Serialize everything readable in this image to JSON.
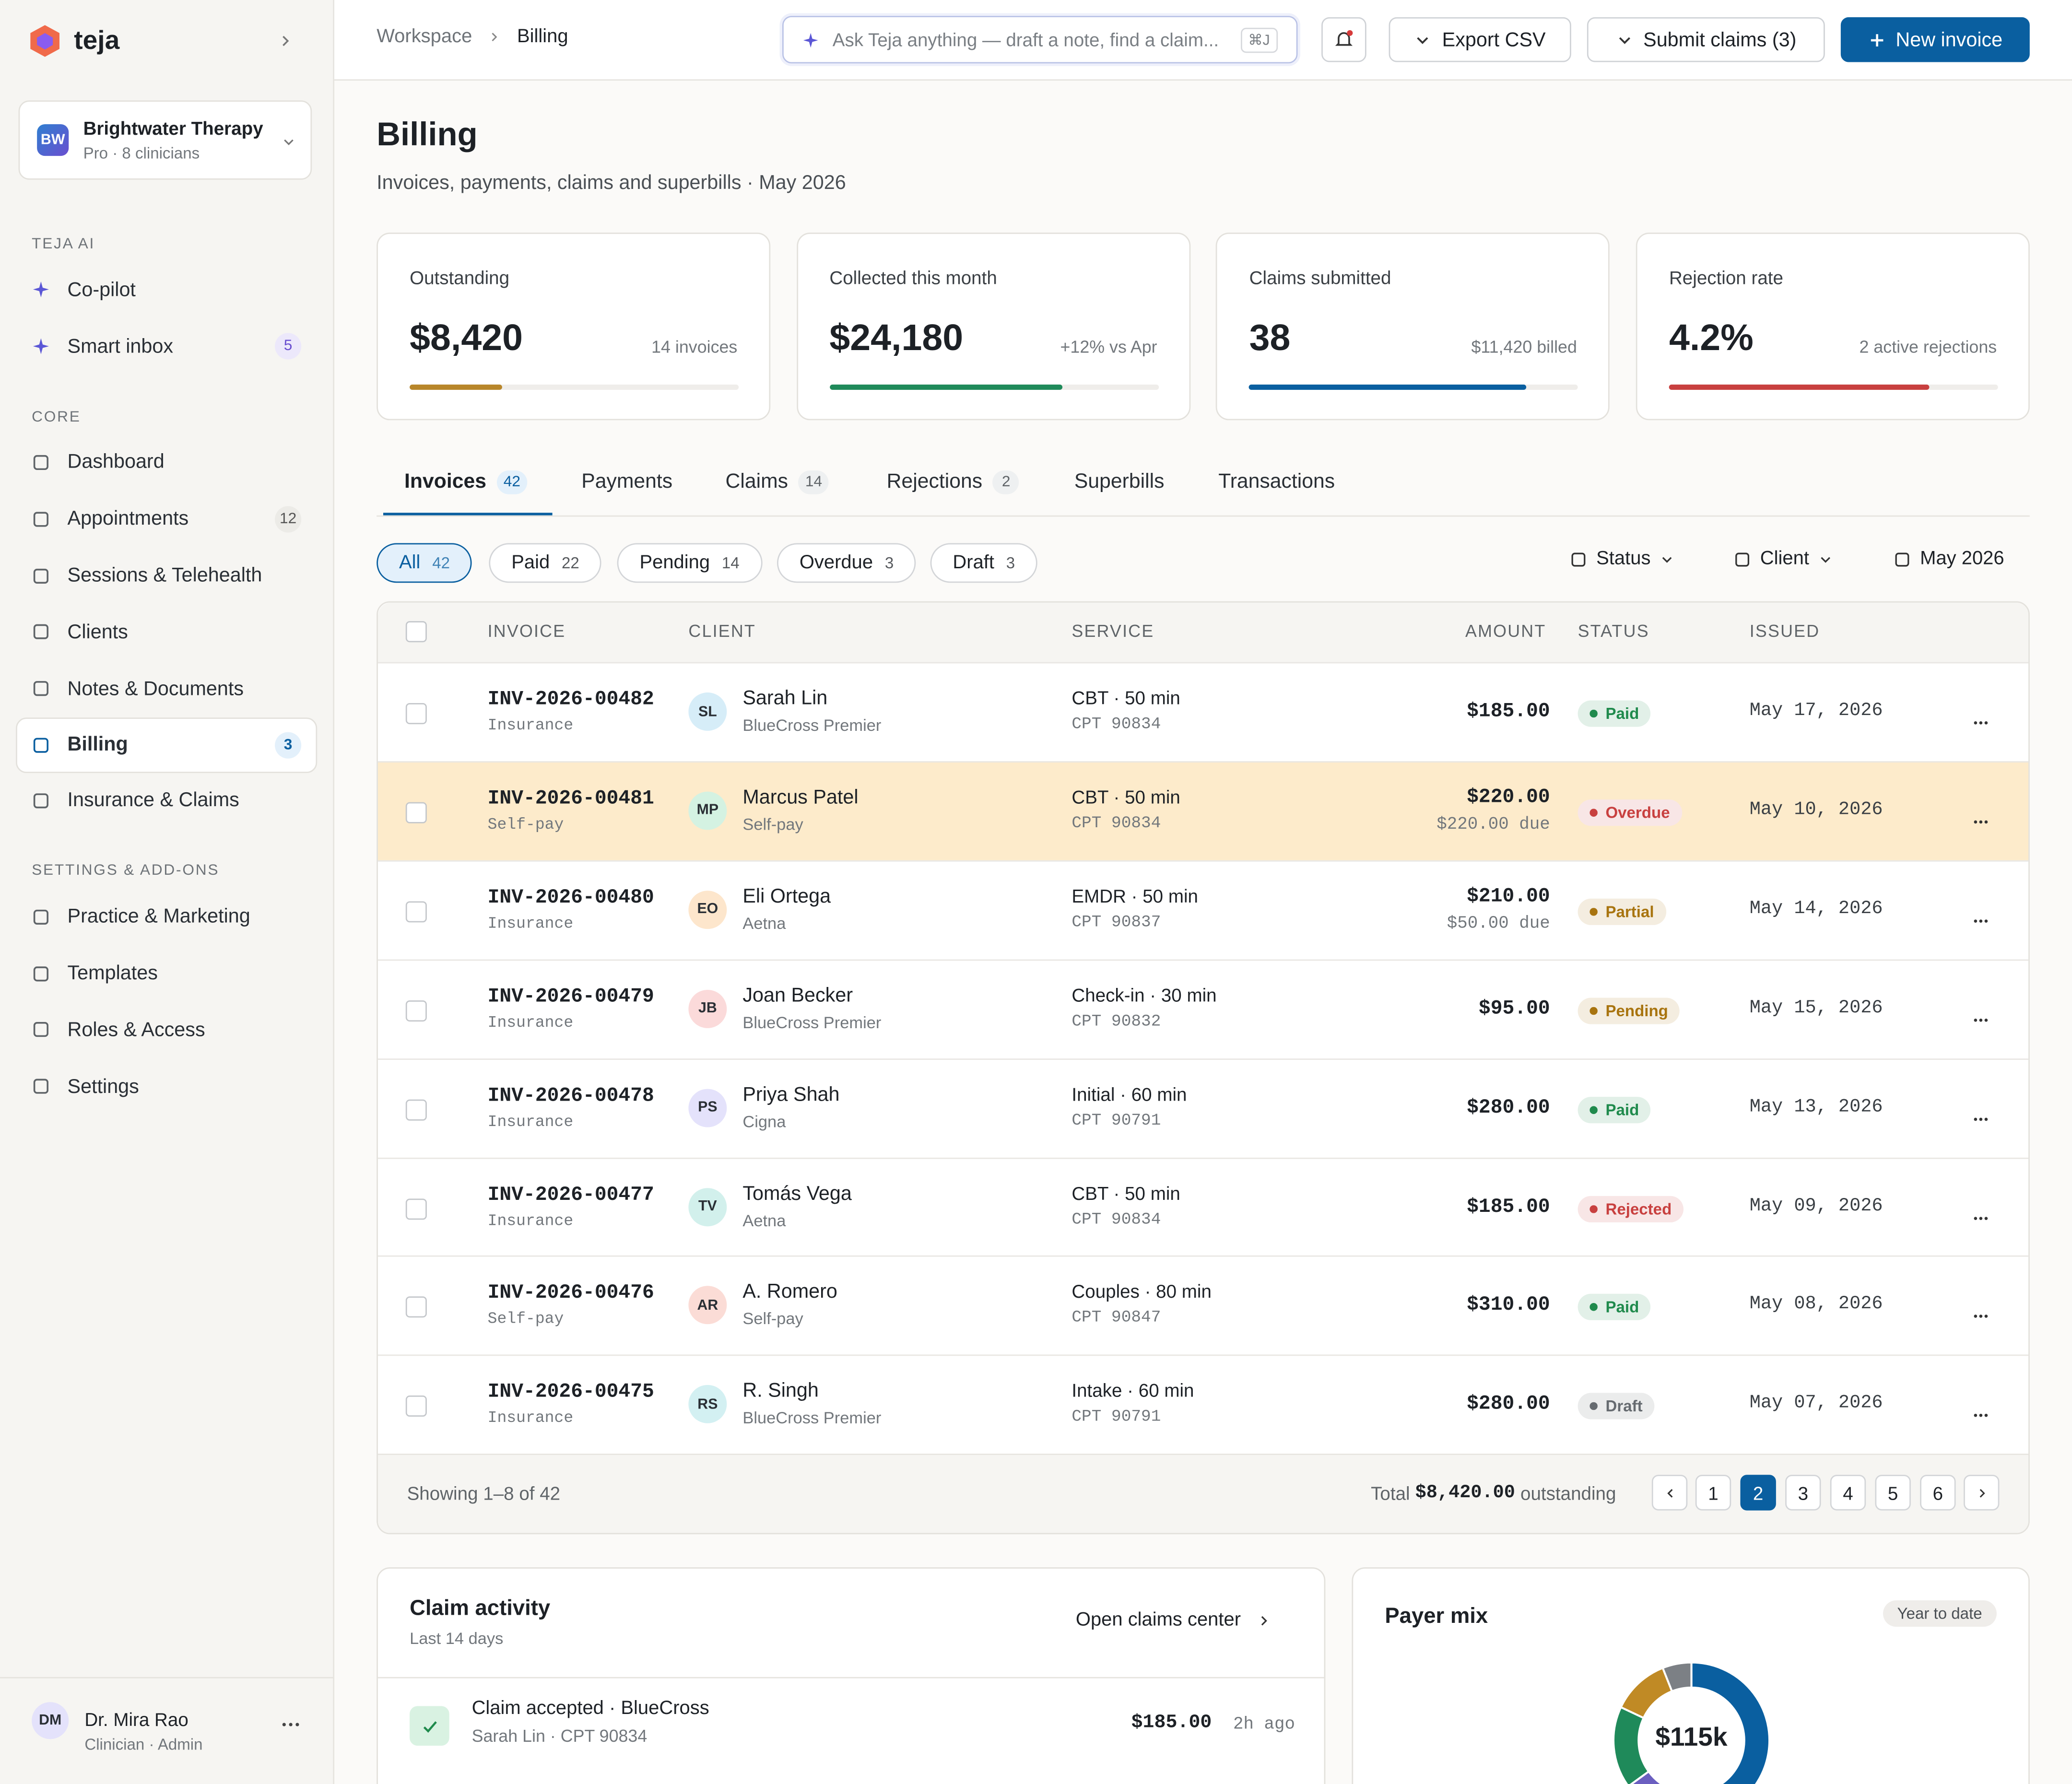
{
  "sidebar": {
    "brand": "teja",
    "org": {
      "initials": "BW",
      "name": "Brightwater Therapy",
      "plan": "Pro · 8 clinicians"
    },
    "sections": [
      {
        "title": "TEJA AI",
        "items": [
          {
            "label": "Co-pilot"
          },
          {
            "label": "Smart inbox",
            "badge": "5"
          }
        ]
      },
      {
        "title": "CORE",
        "items": [
          {
            "label": "Dashboard"
          },
          {
            "label": "Appointments",
            "badge": "12"
          },
          {
            "label": "Sessions & Telehealth"
          },
          {
            "label": "Clients"
          },
          {
            "label": "Notes & Documents"
          },
          {
            "label": "Billing",
            "badge": "3",
            "active": true
          },
          {
            "label": "Insurance & Claims"
          }
        ]
      },
      {
        "title": "SETTINGS & ADD-ONS",
        "items": [
          {
            "label": "Practice & Marketing"
          },
          {
            "label": "Templates"
          },
          {
            "label": "Roles & Access"
          },
          {
            "label": "Settings"
          }
        ]
      }
    ],
    "user": {
      "initials": "DM",
      "name": "Dr. Mira Rao",
      "role": "Clinician · Admin"
    }
  },
  "topbar": {
    "breadcrumb": [
      "Workspace",
      "Billing"
    ],
    "search": "Ask Teja anything — draft a note, find a claim...",
    "shortcut": "⌘J",
    "buttons": [
      "Export CSV",
      "Submit claims (3)",
      "New invoice"
    ]
  },
  "header": {
    "title": "Billing",
    "subtitle": "Invoices, payments, claims and superbills · May 2026"
  },
  "kpis": [
    {
      "label": "Outstanding",
      "value": "$8,420",
      "note": "14 invoices",
      "progress": 28,
      "color": "#b8862a"
    },
    {
      "label": "Collected this month",
      "value": "$24,180",
      "note": "+12% vs Apr",
      "progress": 71,
      "color": "#1f8a5a"
    },
    {
      "label": "Claims submitted",
      "value": "38",
      "note": "$11,420 billed",
      "progress": 84,
      "color": "#0a5fa0"
    },
    {
      "label": "Rejection rate",
      "value": "4.2%",
      "note": "2 active rejections",
      "progress": 79,
      "color": "#c8403f"
    }
  ],
  "tabs": [
    {
      "label": "Invoices",
      "count": "42",
      "active": true
    },
    {
      "label": "Payments"
    },
    {
      "label": "Claims",
      "count": "14"
    },
    {
      "label": "Rejections",
      "count": "2"
    },
    {
      "label": "Superbills"
    },
    {
      "label": "Transactions"
    }
  ],
  "filters": [
    {
      "label": "All",
      "count": "42",
      "active": true
    },
    {
      "label": "Paid",
      "count": "22"
    },
    {
      "label": "Pending",
      "count": "14"
    },
    {
      "label": "Overdue",
      "count": "3"
    },
    {
      "label": "Draft",
      "count": "3"
    }
  ],
  "dropdowns": [
    "Status",
    "Client",
    "May 2026"
  ],
  "table": {
    "columns": [
      "INVOICE",
      "CLIENT",
      "SERVICE",
      "AMOUNT",
      "STATUS",
      "ISSUED"
    ],
    "rows": [
      {
        "id": "INV-2026-00482",
        "kind": "Insurance",
        "initials": "SL",
        "avatar_color": "#d6edf8",
        "client": "Sarah Lin",
        "payer": "BlueCross Premier",
        "service": "CBT · 50 min",
        "cpt": "CPT 90834",
        "amount": "$185.00",
        "status": "Paid",
        "status_color": "#1f8a4c",
        "issued": "May 17, 2026"
      },
      {
        "id": "INV-2026-00481",
        "kind": "Self-pay",
        "initials": "MP",
        "avatar_color": "#d4f2e2",
        "client": "Marcus Patel",
        "payer": "Self-pay",
        "service": "CBT · 50 min",
        "cpt": "CPT 90834",
        "amount": "$220.00",
        "due": "$220.00 due",
        "status": "Overdue",
        "status_color": "#c8403f",
        "issued": "May 10, 2026",
        "highlight": true
      },
      {
        "id": "INV-2026-00480",
        "kind": "Insurance",
        "initials": "EO",
        "avatar_color": "#fde6cc",
        "client": "Eli Ortega",
        "payer": "Aetna",
        "service": "EMDR · 50 min",
        "cpt": "CPT 90837",
        "amount": "$210.00",
        "due": "$50.00 due",
        "status": "Partial",
        "status_color": "#a8740f",
        "issued": "May 14, 2026"
      },
      {
        "id": "INV-2026-00479",
        "kind": "Insurance",
        "initials": "JB",
        "avatar_color": "#fbdada",
        "client": "Joan Becker",
        "payer": "BlueCross Premier",
        "service": "Check-in · 30 min",
        "cpt": "CPT 90832",
        "amount": "$95.00",
        "status": "Pending",
        "status_color": "#a8740f",
        "issued": "May 15, 2026"
      },
      {
        "id": "INV-2026-00478",
        "kind": "Insurance",
        "initials": "PS",
        "avatar_color": "#e4e2fb",
        "client": "Priya Shah",
        "payer": "Cigna",
        "service": "Initial · 60 min",
        "cpt": "CPT 90791",
        "amount": "$280.00",
        "status": "Paid",
        "status_color": "#1f8a4c",
        "issued": "May 13, 2026"
      },
      {
        "id": "INV-2026-00477",
        "kind": "Insurance",
        "initials": "TV",
        "avatar_color": "#d2f0ec",
        "client": "Tomás Vega",
        "payer": "Aetna",
        "service": "CBT · 50 min",
        "cpt": "CPT 90834",
        "amount": "$185.00",
        "status": "Rejected",
        "status_color": "#c8403f",
        "issued": "May 09, 2026"
      },
      {
        "id": "INV-2026-00476",
        "kind": "Self-pay",
        "initials": "AR",
        "avatar_color": "#fbdcd6",
        "client": "A. Romero",
        "payer": "Self-pay",
        "service": "Couples · 80 min",
        "cpt": "CPT 90847",
        "amount": "$310.00",
        "status": "Paid",
        "status_color": "#1f8a4c",
        "issued": "May 08, 2026"
      },
      {
        "id": "INV-2026-00475",
        "kind": "Insurance",
        "initials": "RS",
        "avatar_color": "#d3f0f2",
        "client": "R. Singh",
        "payer": "BlueCross Premier",
        "service": "Intake · 60 min",
        "cpt": "CPT 90791",
        "amount": "$280.00",
        "status": "Draft",
        "status_color": "#666b70",
        "issued": "May 07, 2026"
      }
    ]
  },
  "table_footer": {
    "showing": "Showing 1–8 of 42",
    "total_prefix": "Total",
    "total": "$8,420.00",
    "total_suffix": "outstanding",
    "pages": [
      1,
      2,
      3,
      4,
      5,
      6
    ],
    "active_page": 2
  },
  "claim_activity": {
    "title": "Claim activity",
    "subtitle": "Last 14 days",
    "link": "Open claims center",
    "items": [
      {
        "title": "Claim accepted · BlueCross",
        "detail": "Sarah Lin · CPT 90834",
        "amount": "$185.00",
        "time": "2h ago"
      }
    ]
  },
  "payer_mix": {
    "title": "Payer mix",
    "badge": "Year to date",
    "center": "$115k",
    "segments": [
      {
        "value": 55,
        "color": "#0a5fa0"
      },
      {
        "value": 10,
        "color": "#6b5fc0"
      },
      {
        "value": 17,
        "color": "#1f8a5a"
      },
      {
        "value": 12,
        "color": "#c08a25"
      },
      {
        "value": 6,
        "color": "#7c8085"
      }
    ]
  }
}
